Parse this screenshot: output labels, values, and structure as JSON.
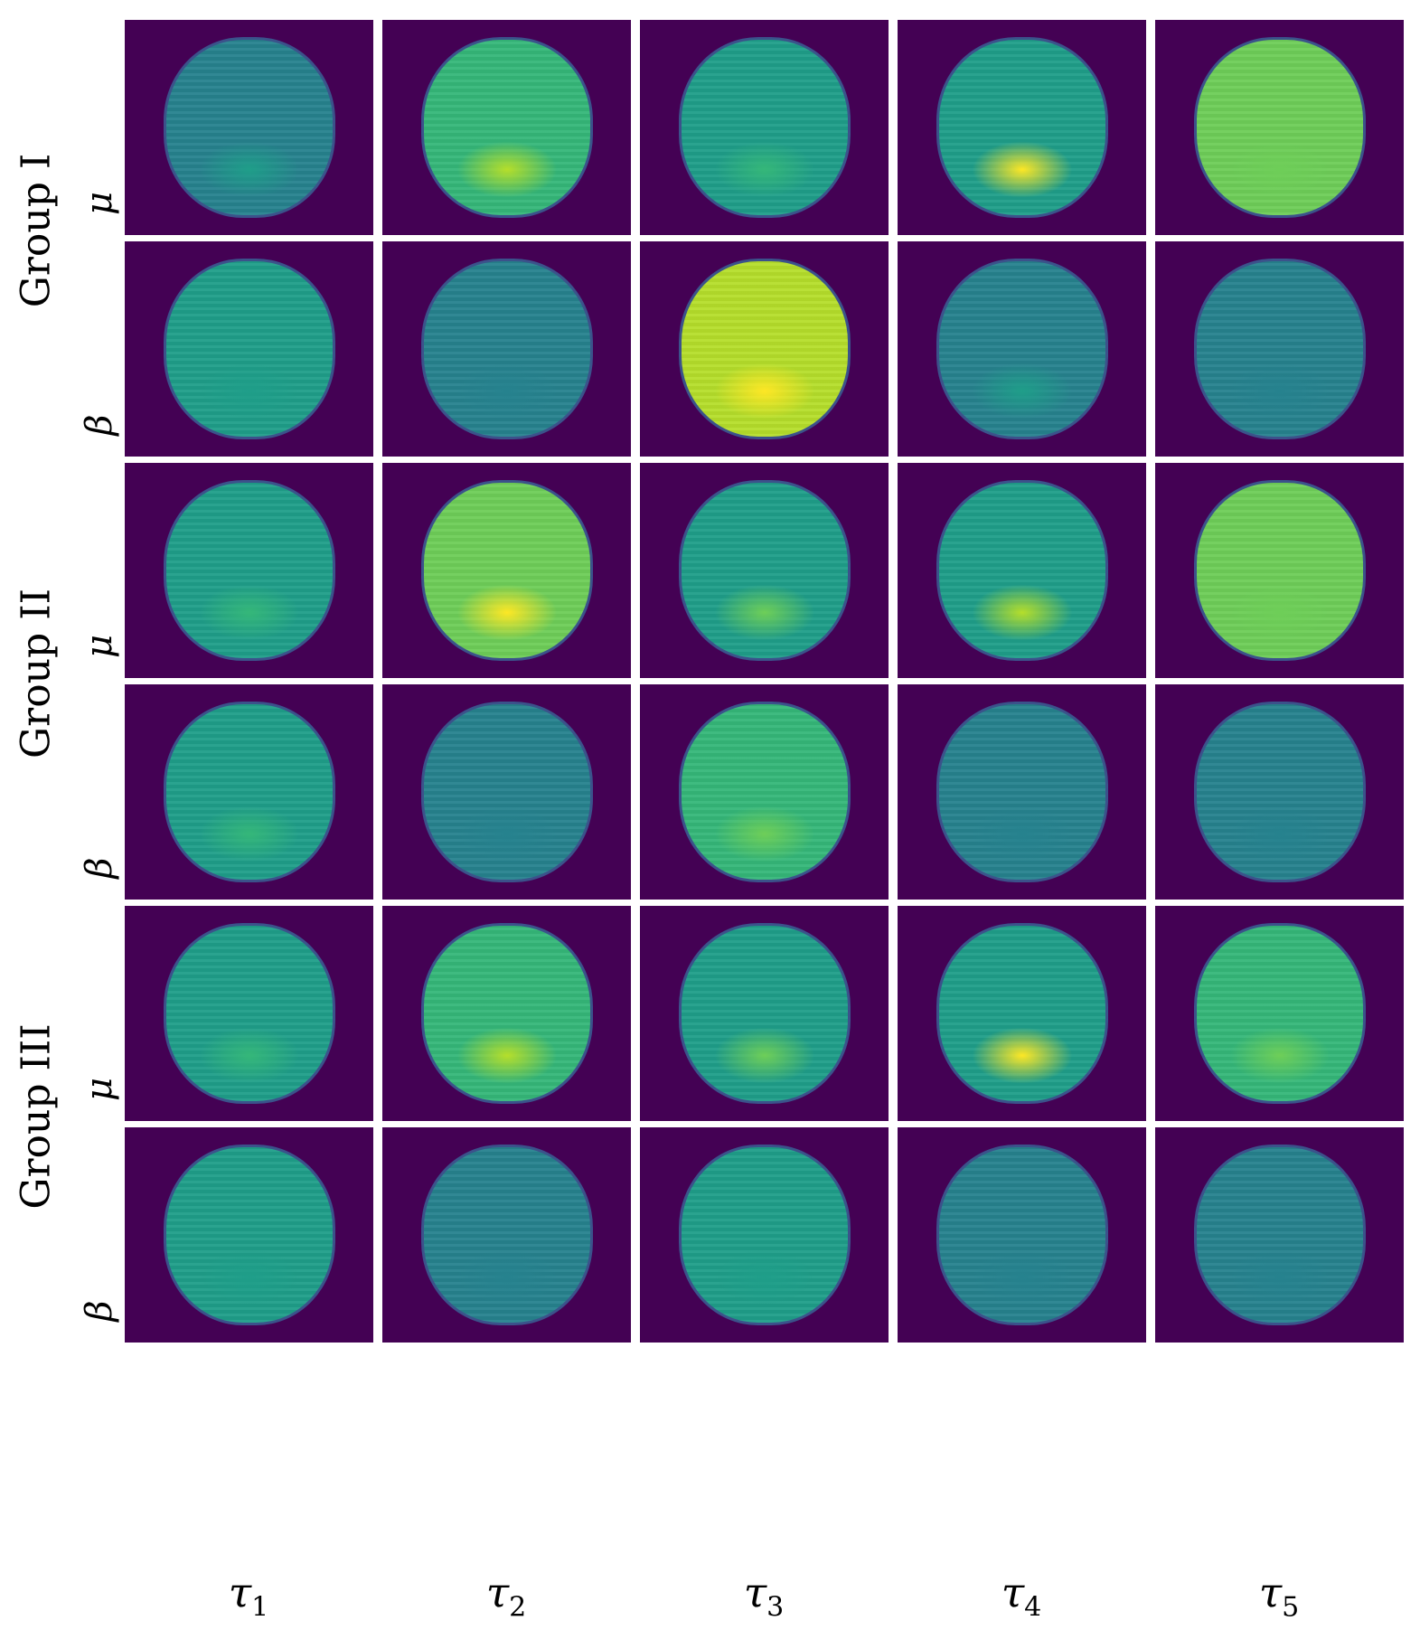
{
  "groups": [
    {
      "label": "Group I"
    },
    {
      "label": "Group II"
    },
    {
      "label": "Group III"
    }
  ],
  "params": [
    "μ",
    "β"
  ],
  "columns": [
    {
      "symbol": "τ",
      "sub": "1"
    },
    {
      "symbol": "τ",
      "sub": "2"
    },
    {
      "symbol": "τ",
      "sub": "3"
    },
    {
      "symbol": "τ",
      "sub": "4"
    },
    {
      "symbol": "τ",
      "sub": "5"
    }
  ],
  "colors": {
    "background": "#440154",
    "edge": "#3b528b",
    "levels": [
      "#3b528b",
      "#31688e",
      "#26828e",
      "#1f9e89",
      "#35b779",
      "#6ece58",
      "#b5de2b",
      "#fde725"
    ]
  },
  "panels": [
    [
      {
        "fill": 0.35,
        "highlight": 0.4
      },
      {
        "fill": 0.62,
        "highlight": 0.8
      },
      {
        "fill": 0.42,
        "highlight": 0.6
      },
      {
        "fill": 0.4,
        "highlight": 0.95
      },
      {
        "fill": 0.68,
        "highlight": 0.75
      }
    ],
    [
      {
        "fill": 0.38,
        "highlight": 0.4
      },
      {
        "fill": 0.25,
        "highlight": 0.3
      },
      {
        "fill": 0.92,
        "highlight": 1.0
      },
      {
        "fill": 0.32,
        "highlight": 0.4
      },
      {
        "fill": 0.22,
        "highlight": 0.25
      }
    ],
    [
      {
        "fill": 0.37,
        "highlight": 0.55
      },
      {
        "fill": 0.72,
        "highlight": 0.95
      },
      {
        "fill": 0.42,
        "highlight": 0.7
      },
      {
        "fill": 0.4,
        "highlight": 0.9
      },
      {
        "fill": 0.7,
        "highlight": 0.75
      }
    ],
    [
      {
        "fill": 0.48,
        "highlight": 0.5
      },
      {
        "fill": 0.27,
        "highlight": 0.3
      },
      {
        "fill": 0.6,
        "highlight": 0.65
      },
      {
        "fill": 0.3,
        "highlight": 0.35
      },
      {
        "fill": 0.22,
        "highlight": 0.25
      }
    ],
    [
      {
        "fill": 0.38,
        "highlight": 0.6
      },
      {
        "fill": 0.62,
        "highlight": 0.85
      },
      {
        "fill": 0.38,
        "highlight": 0.65
      },
      {
        "fill": 0.38,
        "highlight": 0.95
      },
      {
        "fill": 0.6,
        "highlight": 0.65
      }
    ],
    [
      {
        "fill": 0.45,
        "highlight": 0.45
      },
      {
        "fill": 0.3,
        "highlight": 0.35
      },
      {
        "fill": 0.42,
        "highlight": 0.45
      },
      {
        "fill": 0.27,
        "highlight": 0.35
      },
      {
        "fill": 0.23,
        "highlight": 0.25
      }
    ]
  ]
}
